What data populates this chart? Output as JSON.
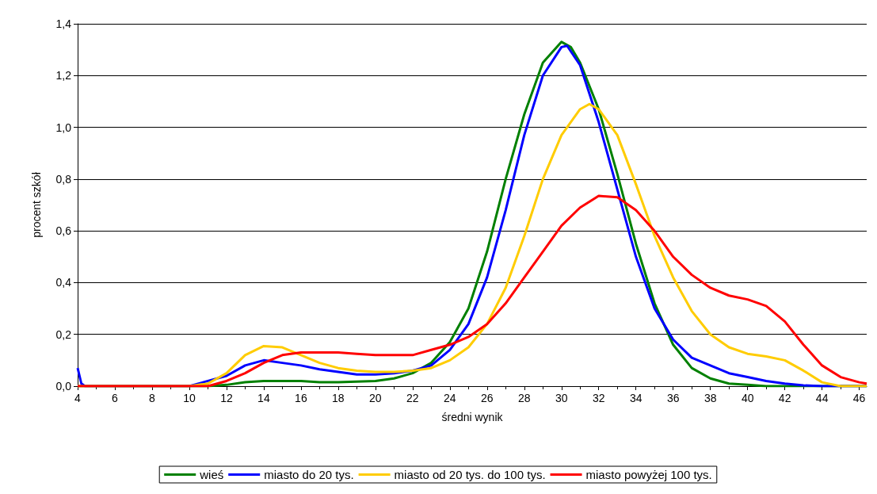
{
  "chart_data": {
    "type": "line",
    "xlabel": "średni wynik",
    "ylabel": "procent szkół",
    "xlim": [
      4,
      46.4
    ],
    "xticks": [
      4,
      6,
      8,
      10,
      12,
      14,
      16,
      18,
      20,
      22,
      24,
      26,
      28,
      30,
      32,
      34,
      36,
      38,
      40,
      42,
      44,
      46
    ],
    "ylim": [
      0,
      1.4
    ],
    "yticks": [
      {
        "value": 0,
        "label": "0,0"
      },
      {
        "value": 0.2,
        "label": "0,2"
      },
      {
        "value": 0.4,
        "label": "0,4"
      },
      {
        "value": 0.6,
        "label": "0,6"
      },
      {
        "value": 0.8,
        "label": "0,8"
      },
      {
        "value": 1,
        "label": "1,0"
      },
      {
        "value": 1.2,
        "label": "1,2"
      },
      {
        "value": 1.4,
        "label": "1,4"
      }
    ],
    "grid": "y",
    "legend": "bottom",
    "marker": "none",
    "line_style": "solid",
    "series": [
      {
        "name": "wieś",
        "color": "#008000",
        "x": [
          4,
          11,
          12,
          13,
          14,
          16,
          17,
          18,
          20,
          21,
          22,
          23,
          24,
          25,
          26,
          27,
          28,
          29,
          30,
          30.5,
          31,
          32,
          33,
          34,
          35,
          36,
          37,
          38,
          39,
          40,
          41,
          46.4
        ],
        "values": [
          0,
          0,
          0.005,
          0.015,
          0.02,
          0.02,
          0.015,
          0.015,
          0.02,
          0.03,
          0.05,
          0.09,
          0.17,
          0.3,
          0.52,
          0.8,
          1.05,
          1.25,
          1.33,
          1.31,
          1.25,
          1.07,
          0.82,
          0.55,
          0.32,
          0.16,
          0.07,
          0.03,
          0.01,
          0.005,
          0,
          0
        ]
      },
      {
        "name": "miasto do 20 tys.",
        "color": "#0000ff",
        "x": [
          4,
          4.2,
          4.4,
          10,
          12,
          13,
          14,
          15,
          16,
          17,
          18,
          19,
          20,
          21,
          22,
          23,
          24,
          25,
          26,
          27,
          28,
          29,
          30,
          30.3,
          31,
          32,
          33,
          34,
          35,
          36,
          37,
          38,
          39,
          40,
          41,
          42,
          43,
          44,
          46.4
        ],
        "values": [
          0.07,
          0.01,
          0,
          0,
          0.04,
          0.08,
          0.1,
          0.09,
          0.08,
          0.065,
          0.055,
          0.045,
          0.045,
          0.05,
          0.06,
          0.08,
          0.14,
          0.24,
          0.42,
          0.68,
          0.97,
          1.2,
          1.31,
          1.315,
          1.24,
          1.02,
          0.76,
          0.5,
          0.3,
          0.18,
          0.11,
          0.08,
          0.05,
          0.035,
          0.02,
          0.01,
          0.003,
          0,
          0
        ]
      },
      {
        "name": "miasto od 20 tys. do 100 tys.",
        "color": "#ffcc00",
        "x": [
          4,
          10,
          11,
          12,
          13,
          14,
          15,
          16,
          17,
          18,
          19,
          20,
          21,
          22,
          23,
          24,
          25,
          26,
          27,
          28,
          29,
          30,
          31,
          31.5,
          32,
          33,
          34,
          35,
          36,
          37,
          38,
          39,
          40,
          41,
          42,
          43,
          44,
          45,
          46.4
        ],
        "values": [
          0,
          0,
          0.01,
          0.05,
          0.12,
          0.155,
          0.15,
          0.12,
          0.09,
          0.07,
          0.06,
          0.055,
          0.055,
          0.06,
          0.07,
          0.1,
          0.15,
          0.24,
          0.38,
          0.58,
          0.8,
          0.97,
          1.07,
          1.09,
          1.07,
          0.97,
          0.78,
          0.58,
          0.42,
          0.29,
          0.2,
          0.15,
          0.125,
          0.115,
          0.1,
          0.06,
          0.015,
          0,
          0
        ]
      },
      {
        "name": "miasto powyżej 100 tys.",
        "color": "#ff0000",
        "x": [
          4,
          11,
          12,
          13,
          14,
          15,
          16,
          18,
          19,
          20,
          22,
          23,
          24,
          25,
          26,
          27,
          28,
          29,
          30,
          31,
          32,
          33,
          34,
          35,
          36,
          37,
          38,
          39,
          40,
          41,
          42,
          43,
          44,
          45,
          46,
          46.4
        ],
        "values": [
          0,
          0,
          0.02,
          0.05,
          0.09,
          0.12,
          0.13,
          0.13,
          0.125,
          0.12,
          0.12,
          0.14,
          0.16,
          0.19,
          0.24,
          0.32,
          0.42,
          0.52,
          0.62,
          0.69,
          0.735,
          0.73,
          0.68,
          0.6,
          0.5,
          0.43,
          0.38,
          0.35,
          0.335,
          0.31,
          0.25,
          0.16,
          0.08,
          0.035,
          0.015,
          0.01
        ]
      }
    ]
  }
}
